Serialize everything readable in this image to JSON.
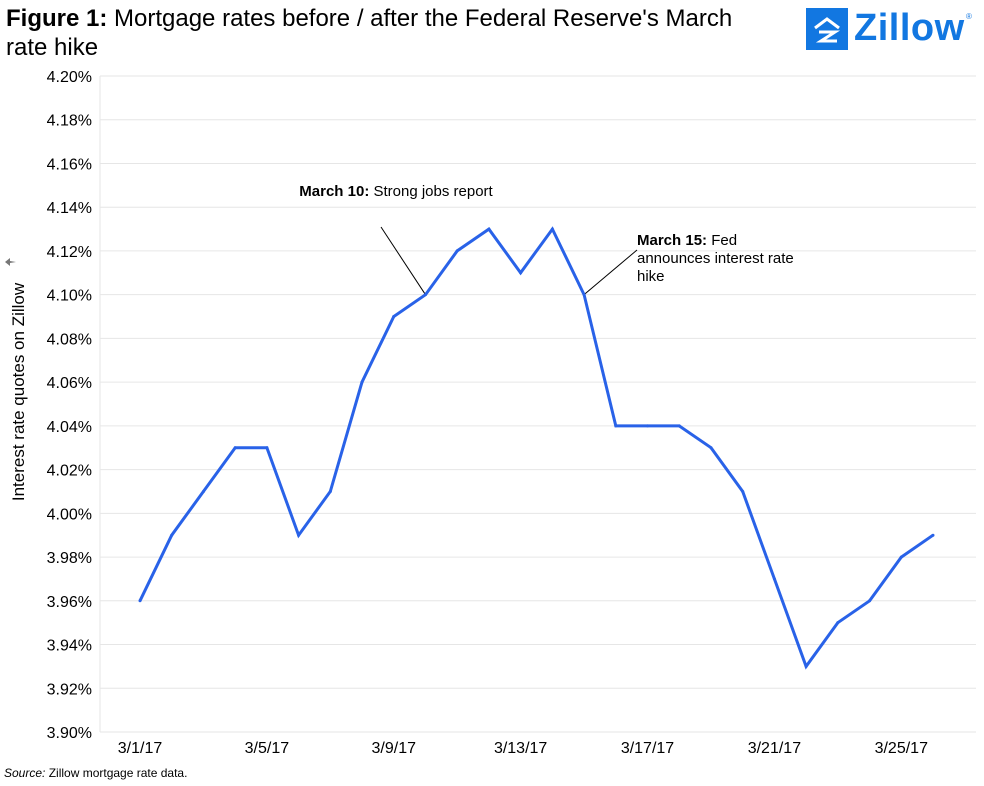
{
  "header": {
    "figure_label": "Figure 1:",
    "title": "Mortgage rates before / after the Federal Reserve's March rate hike"
  },
  "logo": {
    "text": "Zillow",
    "reg": "®",
    "color": "#1277e1"
  },
  "source": {
    "label": "Source:",
    "text": " Zillow mortgage rate data."
  },
  "colors": {
    "line": "#2962e8",
    "grid": "#e6e6e6"
  },
  "chart_data": {
    "type": "line",
    "ylabel": "Interest rate quotes on Zillow",
    "ylabel_icon": "pin-icon",
    "xlabel": "",
    "ylim": [
      3.9,
      4.2
    ],
    "y_ticks": [
      "3.90%",
      "3.92%",
      "3.94%",
      "3.96%",
      "3.98%",
      "4.00%",
      "4.02%",
      "4.04%",
      "4.06%",
      "4.08%",
      "4.10%",
      "4.12%",
      "4.14%",
      "4.16%",
      "4.18%",
      "4.20%"
    ],
    "x_tick_labels": [
      "3/1/17",
      "3/5/17",
      "3/9/17",
      "3/13/17",
      "3/17/17",
      "3/21/17",
      "3/25/17"
    ],
    "grid": true,
    "series": [
      {
        "x": [
          "3/1/17",
          "3/2/17",
          "3/3/17",
          "3/4/17",
          "3/5/17",
          "3/6/17",
          "3/7/17",
          "3/8/17",
          "3/9/17",
          "3/10/17",
          "3/11/17",
          "3/12/17",
          "3/13/17",
          "3/14/17",
          "3/15/17",
          "3/16/17",
          "3/17/17",
          "3/18/17",
          "3/19/17",
          "3/20/17",
          "3/21/17",
          "3/22/17",
          "3/23/17",
          "3/24/17",
          "3/25/17",
          "3/26/17"
        ],
        "values": [
          3.96,
          3.99,
          4.01,
          4.03,
          4.03,
          3.99,
          4.01,
          4.06,
          4.09,
          4.1,
          4.12,
          4.13,
          4.11,
          4.13,
          4.1,
          4.04,
          4.04,
          4.04,
          4.03,
          4.01,
          3.97,
          3.93,
          3.95,
          3.96,
          3.98,
          3.99
        ]
      }
    ],
    "annotations": [
      {
        "date": "3/10/17",
        "bold": "March 10:",
        "text": " Strong jobs report"
      },
      {
        "date": "3/15/17",
        "bold": "March 15:",
        "text": " Fed announces interest rate hike"
      }
    ]
  }
}
